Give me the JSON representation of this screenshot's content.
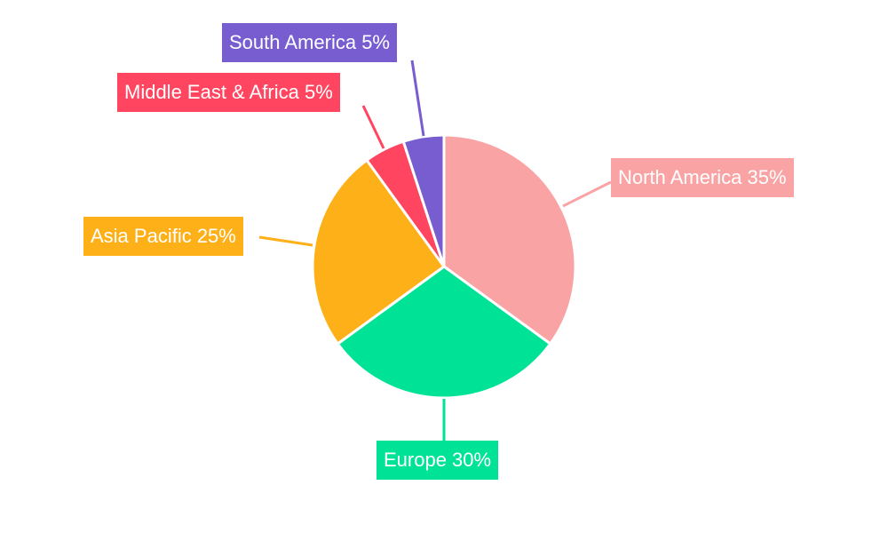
{
  "chart_data": {
    "type": "pie",
    "categories": [
      "North America",
      "Europe",
      "Asia Pacific",
      "Middle East & Africa",
      "South America"
    ],
    "values": [
      35,
      30,
      25,
      5,
      5
    ],
    "labels": [
      "North America 35%",
      "Europe 30%",
      "Asia Pacific 25%",
      "Middle East & Africa 5%",
      "South America 5%"
    ],
    "colors": [
      "#F9A3A4",
      "#00E396",
      "#FEB019",
      "#FF4560",
      "#775DD0"
    ],
    "start_angle": "top, clockwise",
    "legend": "none"
  }
}
